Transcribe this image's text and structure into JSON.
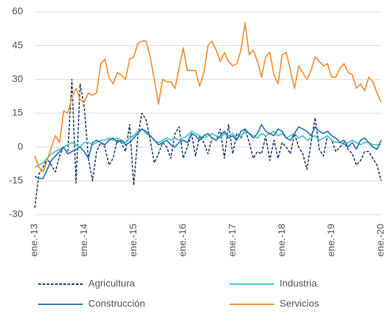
{
  "chart_data": {
    "type": "line",
    "categories": [
      "ene.-13",
      null,
      null,
      null,
      null,
      null,
      null,
      null,
      null,
      null,
      null,
      null,
      "ene.-14",
      null,
      null,
      null,
      null,
      null,
      null,
      null,
      null,
      null,
      null,
      null,
      "ene.-15",
      null,
      null,
      null,
      null,
      null,
      null,
      null,
      null,
      null,
      null,
      null,
      "ene.-16",
      null,
      null,
      null,
      null,
      null,
      null,
      null,
      null,
      null,
      null,
      null,
      "ene.-17",
      null,
      null,
      null,
      null,
      null,
      null,
      null,
      null,
      null,
      null,
      null,
      "ene.-18",
      null,
      null,
      null,
      null,
      null,
      null,
      null,
      null,
      null,
      null,
      null,
      "ene.-19",
      null,
      null,
      null,
      null,
      null,
      null,
      null,
      null,
      null,
      null,
      null,
      "ene.-20"
    ],
    "series": [
      {
        "name": "Agricultura",
        "color": "#1f3f6e",
        "dash": true,
        "values": [
          -27,
          -12,
          -9,
          -5,
          -8,
          -11,
          -4,
          0,
          -3,
          30,
          -16,
          28,
          18,
          -5,
          -15,
          -2,
          2,
          0,
          -8,
          -5,
          3,
          2,
          -2,
          10,
          -17,
          5,
          15,
          12,
          3,
          -7,
          -3,
          2,
          0,
          -5,
          6,
          9,
          -5,
          0,
          6,
          -4,
          5,
          2,
          -3,
          4,
          3,
          8,
          -5,
          10,
          -3,
          6,
          4,
          8,
          2,
          -5,
          -2,
          -3,
          5,
          -6,
          3,
          -5,
          2,
          0,
          -3,
          6,
          0,
          -3,
          -10,
          2,
          13,
          -1,
          -4,
          5,
          3,
          -2,
          0,
          2,
          -1,
          -3,
          -8,
          -6,
          -2,
          -2,
          -5,
          -8,
          -15
        ]
      },
      {
        "name": "Industria",
        "color": "#45c6c2",
        "dash": false,
        "values": [
          -9,
          -8,
          -7,
          -5,
          -3,
          -2,
          -1,
          0,
          1,
          2,
          1,
          0,
          2,
          2,
          1,
          2,
          3,
          3,
          4,
          3,
          4,
          3,
          2,
          4,
          5,
          7,
          8,
          6,
          5,
          3,
          2,
          3,
          4,
          3,
          4,
          3,
          4,
          5,
          7,
          6,
          5,
          4,
          5,
          6,
          5,
          4,
          6,
          5,
          6,
          4,
          5,
          7,
          6,
          5,
          4,
          6,
          5,
          6,
          7,
          5,
          6,
          4,
          5,
          6,
          4,
          5,
          3,
          4,
          5,
          3,
          4,
          5,
          3,
          2,
          2,
          1,
          2,
          3,
          2,
          1,
          2,
          2,
          1,
          1,
          1
        ]
      },
      {
        "name": "Construcción",
        "color": "#2e75b6",
        "dash": false,
        "values": [
          -13,
          -14,
          -14,
          -10,
          -6,
          -4,
          -2,
          0,
          -3,
          -2,
          -1,
          0,
          -2,
          -5,
          2,
          3,
          2,
          1,
          3,
          4,
          2,
          3,
          1,
          2,
          4,
          6,
          8,
          7,
          5,
          3,
          1,
          2,
          3,
          1,
          0,
          2,
          3,
          2,
          6,
          5,
          3,
          5,
          6,
          4,
          3,
          5,
          7,
          4,
          5,
          3,
          7,
          8,
          6,
          4,
          6,
          10,
          7,
          6,
          5,
          8,
          7,
          4,
          3,
          6,
          9,
          8,
          7,
          5,
          9,
          7,
          6,
          7,
          5,
          4,
          2,
          3,
          0,
          2,
          -1,
          3,
          4,
          2,
          0,
          -1,
          3
        ]
      },
      {
        "name": "Servicios",
        "color": "#f39237",
        "dash": false,
        "values": [
          -4,
          -9,
          -11,
          -6,
          0,
          5,
          2,
          16,
          15,
          22,
          26,
          21,
          20,
          24,
          23,
          24,
          37,
          39,
          31,
          28,
          33,
          32,
          30,
          39,
          40,
          46,
          47,
          47,
          40,
          30,
          19,
          30,
          29,
          29,
          26,
          35,
          44,
          34,
          34,
          34,
          27,
          33,
          45,
          47,
          43,
          38,
          42,
          38,
          36,
          37,
          43,
          55,
          41,
          43,
          38,
          31,
          40,
          42,
          32,
          28,
          41,
          42,
          34,
          26,
          36,
          33,
          30,
          34,
          40,
          38,
          36,
          37,
          31,
          31,
          35,
          37,
          33,
          32,
          26,
          28,
          25,
          31,
          29,
          24,
          20
        ]
      }
    ],
    "ylim": [
      -30,
      60
    ],
    "yticks": [
      -30,
      -15,
      0,
      15,
      30,
      45,
      60
    ],
    "grid": true
  }
}
